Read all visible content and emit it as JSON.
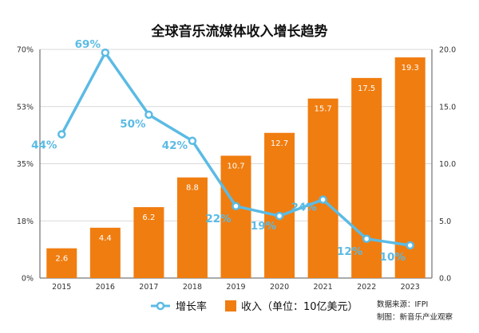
{
  "colors": {
    "bar": "#f07d10",
    "line": "#5bbbe4",
    "grid": "#d9d9d9",
    "axis": "#555555"
  },
  "chart_data": {
    "type": "bar",
    "title": "全球音乐流媒体收入增长趋势",
    "categories": [
      "2015",
      "2016",
      "2017",
      "2018",
      "2019",
      "2020",
      "2021",
      "2022",
      "2023"
    ],
    "series": [
      {
        "name": "收入（单位：10亿美元）",
        "type": "bar",
        "axis": "right",
        "values": [
          2.6,
          4.4,
          6.2,
          8.8,
          10.7,
          12.7,
          15.7,
          17.5,
          19.3
        ],
        "labels": [
          "2.6",
          "4.4",
          "6.2",
          "8.8",
          "10.7",
          "12.7",
          "15.7",
          "17.5",
          "19.3"
        ]
      },
      {
        "name": "增长率",
        "type": "line",
        "axis": "left",
        "values": [
          44,
          69,
          50,
          42,
          22,
          19,
          24,
          12,
          10
        ],
        "labels": [
          "44%",
          "69%",
          "50%",
          "42%",
          "22%",
          "19%",
          "24%",
          "12%",
          "10%"
        ]
      }
    ],
    "y_left": {
      "ylim": [
        0,
        70
      ],
      "ticks": [
        "0%",
        "18%",
        "35%",
        "53%",
        "70%"
      ]
    },
    "y_right": {
      "ylim": [
        0,
        20
      ],
      "ticks": [
        "0.0",
        "5.0",
        "10.0",
        "15.0",
        "20.0"
      ]
    },
    "grid": true,
    "legend": {
      "placement": "bottom",
      "items": [
        {
          "label": "增长率",
          "marker": "line"
        },
        {
          "label": "收入（单位：10亿美元）",
          "marker": "bar"
        }
      ]
    },
    "source": [
      "数据来源：IFPI",
      "制图：新音乐产业观察"
    ]
  }
}
